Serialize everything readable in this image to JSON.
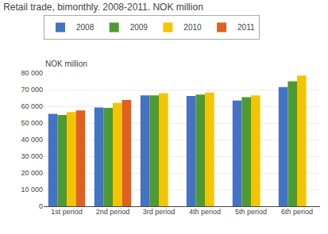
{
  "chart_data": {
    "type": "bar",
    "title": "Retail trade, bimonthly. 2008-2011. NOK million",
    "ylabel": "NOK million",
    "categories": [
      "1st period",
      "2nd period",
      "3rd period",
      "4th period",
      "5th period",
      "6th period"
    ],
    "series": [
      {
        "name": "2008",
        "color": "#4472C4",
        "values": [
          55500,
          59300,
          66500,
          66200,
          63500,
          71500
        ]
      },
      {
        "name": "2009",
        "color": "#4E9A32",
        "values": [
          54800,
          59000,
          66500,
          67000,
          65500,
          75000
        ]
      },
      {
        "name": "2010",
        "color": "#F5C400",
        "values": [
          56500,
          62000,
          67800,
          68200,
          66500,
          78500
        ]
      },
      {
        "name": "2011",
        "color": "#E06020",
        "values": [
          57500,
          63800,
          0,
          0,
          0,
          0
        ]
      }
    ],
    "ylim": [
      0,
      80000
    ],
    "yticks": [
      0,
      {
        "value": 10000,
        "label": "10 000"
      },
      {
        "value": 20000,
        "label": "20 000"
      },
      {
        "value": 30000,
        "label": "30 000"
      },
      {
        "value": 40000,
        "label": "40 000"
      },
      {
        "value": 50000,
        "label": "50 000"
      },
      {
        "value": 60000,
        "label": "60 000"
      },
      {
        "value": 70000,
        "label": "70 000"
      },
      {
        "value": 80000,
        "label": "80 000"
      }
    ],
    "grid": true,
    "legend": "upper left"
  }
}
